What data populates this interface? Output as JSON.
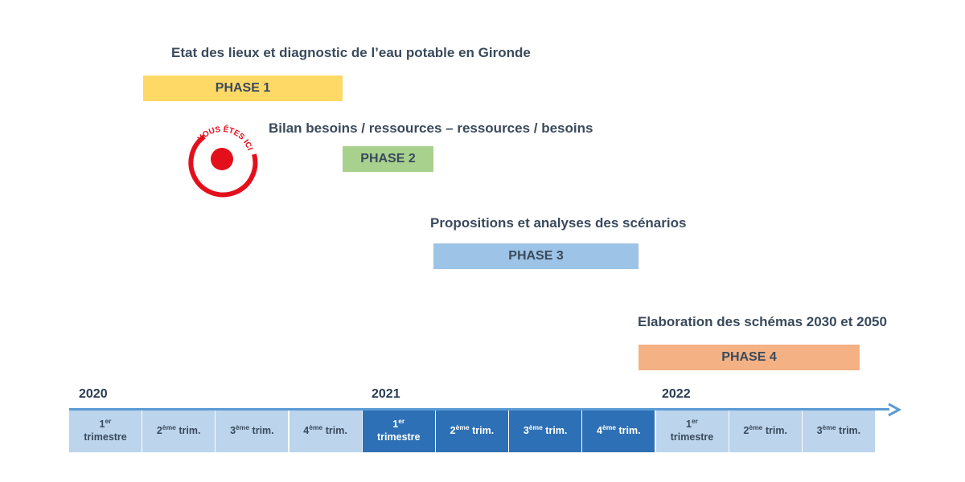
{
  "phases": [
    {
      "title": "Etat des lieux et diagnostic de l’eau potable en Gironde",
      "label": "PHASE 1",
      "color": "#ffd966"
    },
    {
      "title": "Bilan besoins / ressources – ressources / besoins",
      "label": "PHASE 2",
      "color": "#a9d18e"
    },
    {
      "title": "Propositions et analyses des scénarios",
      "label": "PHASE 3",
      "color": "#9dc3e6"
    },
    {
      "title": "Elaboration des schémas 2030 et 2050",
      "label": "PHASE 4",
      "color": "#f4b183"
    }
  ],
  "marker": {
    "text": "VOUS ÊTES ICI",
    "color": "#e3101c"
  },
  "years": [
    "2020",
    "2021",
    "2022"
  ],
  "quarters": [
    {
      "num": "1",
      "sup": "er",
      "text": "trimestre",
      "style": "light"
    },
    {
      "num": "2",
      "sup": "ème",
      "text": "trim.",
      "style": "light"
    },
    {
      "num": "3",
      "sup": "ème",
      "text": "trim.",
      "style": "light"
    },
    {
      "num": "4",
      "sup": "ème",
      "text": "trim.",
      "style": "light"
    },
    {
      "num": "1",
      "sup": "er",
      "text": "trimestre",
      "style": "dark"
    },
    {
      "num": "2",
      "sup": "ème",
      "text": "trim.",
      "style": "dark"
    },
    {
      "num": "3",
      "sup": "ème",
      "text": "trim.",
      "style": "dark"
    },
    {
      "num": "4",
      "sup": "ème",
      "text": "trim.",
      "style": "dark"
    },
    {
      "num": "1",
      "sup": "er",
      "text": "trimestre",
      "style": "light"
    },
    {
      "num": "2",
      "sup": "ème",
      "text": "trim.",
      "style": "light"
    },
    {
      "num": "3",
      "sup": "ème",
      "text": "trim.",
      "style": "light"
    }
  ],
  "colors": {
    "axis": "#5b9bd5",
    "quarter_light": "#bcd4ec",
    "quarter_dark": "#2e70b5"
  }
}
